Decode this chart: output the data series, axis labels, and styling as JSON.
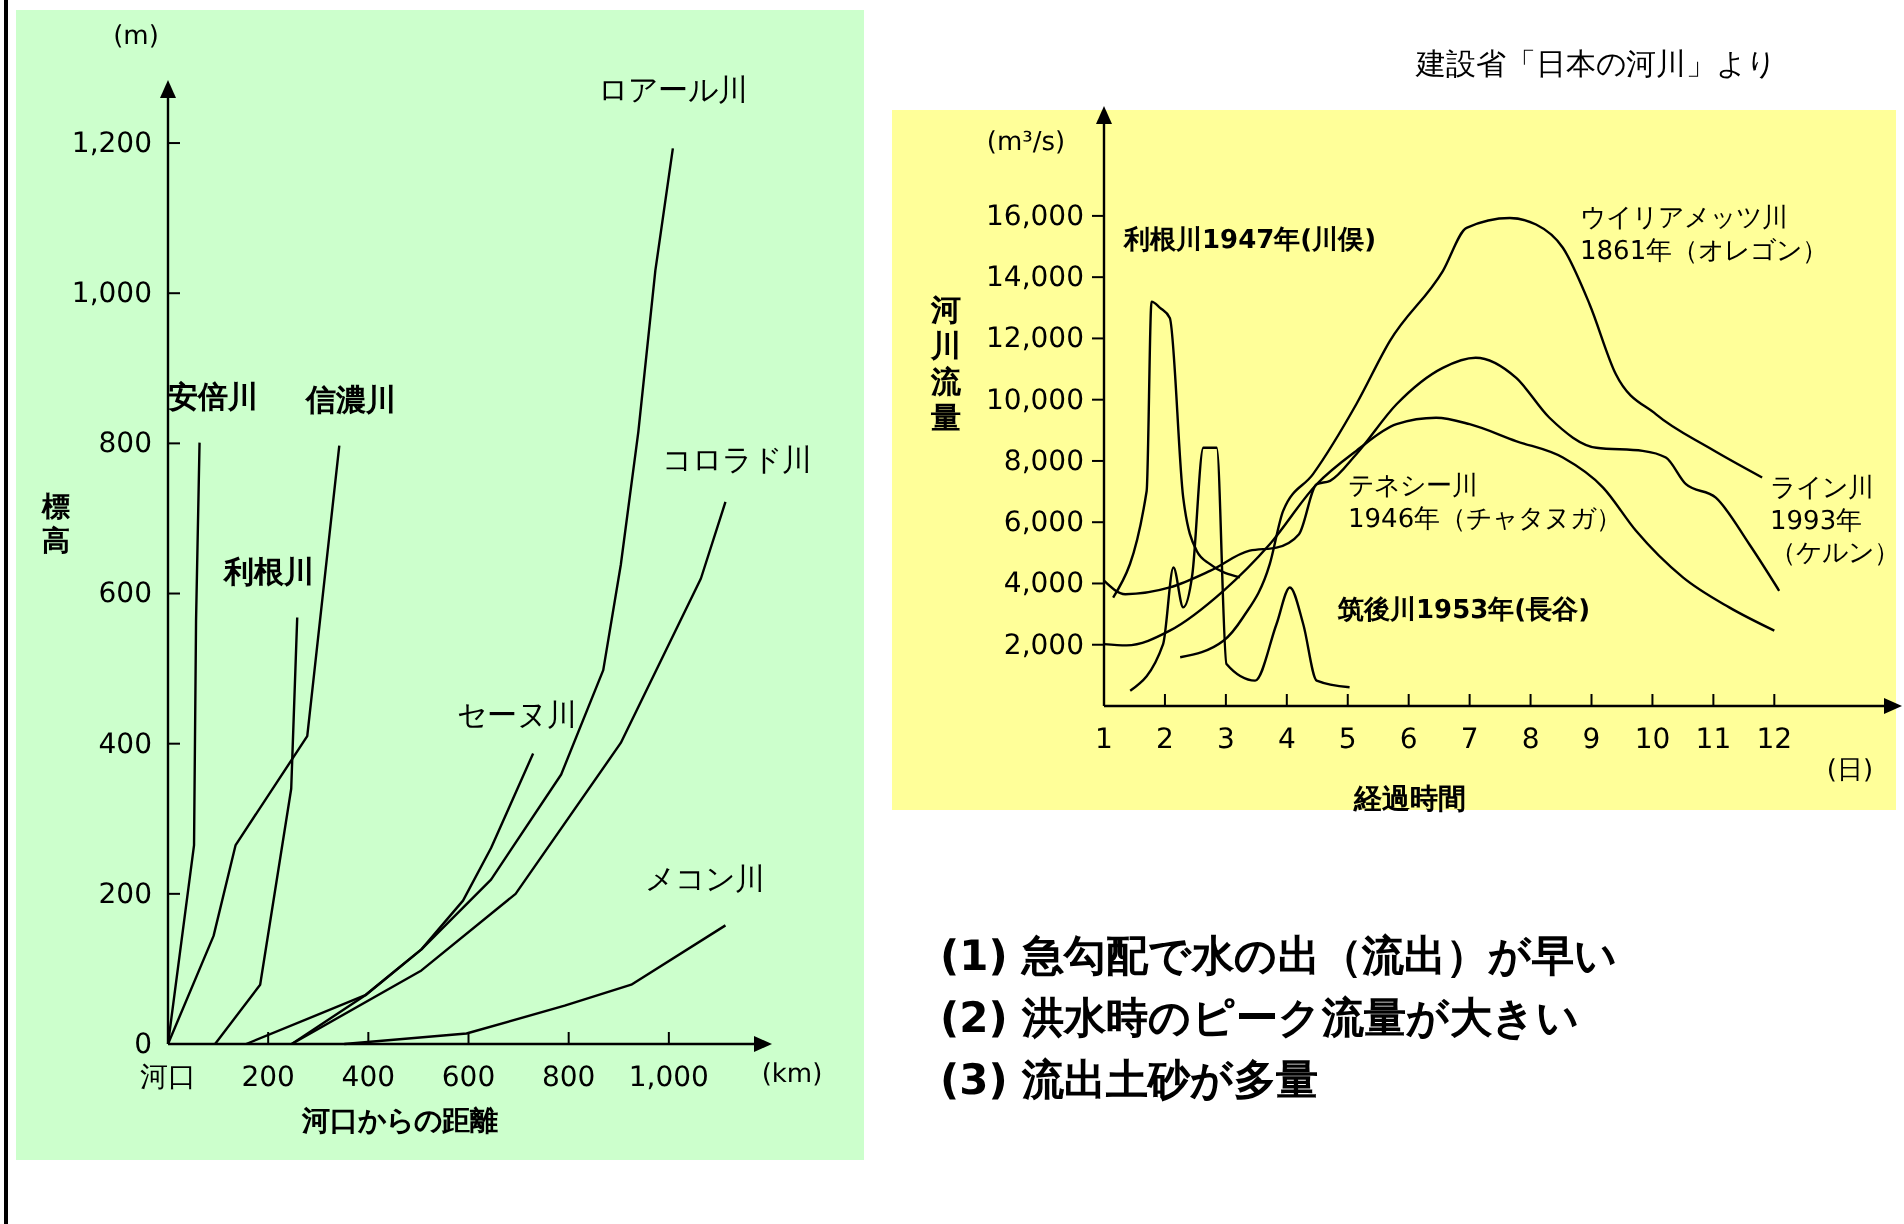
{
  "chart_data": [
    {
      "type": "line",
      "xlabel": "河口からの距離",
      "ylabel": "標高",
      "xlim": [
        0,
        1170
      ],
      "ylim": [
        0,
        1260
      ],
      "xticks": [
        {
          "value": 0,
          "label": "河口"
        },
        200,
        400,
        600,
        800,
        {
          "value": 1000,
          "label": "1,000"
        }
      ],
      "yticks": [
        0,
        200,
        400,
        600,
        800,
        {
          "value": 1000,
          "label": "1,000"
        },
        {
          "value": 1200,
          "label": "1,200"
        }
      ],
      "annotations": [
        "(m)",
        "(km)"
      ],
      "grid": false,
      "series": [
        {
          "name": "安倍川",
          "color": "#000000",
          "x": [
            0,
            52,
            56,
            63
          ],
          "values": [
            0,
            265,
            564,
            801
          ]
        },
        {
          "name": "信濃川",
          "color": "#000000",
          "x": [
            0,
            91,
            135,
            278,
            342
          ],
          "values": [
            0,
            144,
            265,
            410,
            797
          ]
        },
        {
          "name": "利根川",
          "color": "#000000",
          "x": [
            94,
            184,
            246,
            258
          ],
          "values": [
            0,
            79,
            340,
            568
          ]
        },
        {
          "name": "セーヌ川",
          "color": "#000000",
          "x": [
            156,
            394,
            506,
            589,
            645,
            729
          ],
          "values": [
            0,
            65,
            126,
            191,
            261,
            387
          ]
        },
        {
          "name": "ロアール川",
          "color": "#000000",
          "x": [
            247,
            394,
            506,
            645,
            785,
            869,
            904,
            939,
            973,
            1008
          ],
          "values": [
            0,
            65,
            126,
            219,
            359,
            498,
            638,
            815,
            1030,
            1193
          ]
        },
        {
          "name": "コロラド川",
          "color": "#000000",
          "x": [
            247,
            506,
            694,
            904,
            1064,
            1113
          ],
          "values": [
            0,
            98,
            200,
            401,
            620,
            722
          ]
        },
        {
          "name": "メコン川",
          "color": "#000000",
          "x": [
            352,
            596,
            792,
            925,
            1113
          ],
          "values": [
            0,
            14,
            51,
            79,
            158
          ]
        }
      ]
    },
    {
      "type": "line",
      "xlabel": "経過時間",
      "ylabel": "河川流量",
      "xlim": [
        1,
        13.8
      ],
      "ylim": [
        0,
        19000
      ],
      "xticks": [
        1,
        2,
        3,
        4,
        5,
        6,
        7,
        8,
        9,
        10,
        11,
        12
      ],
      "yticks": [
        {
          "value": 2000,
          "label": "2,000"
        },
        {
          "value": 4000,
          "label": "4,000"
        },
        {
          "value": 6000,
          "label": "6,000"
        },
        {
          "value": 8000,
          "label": "8,000"
        },
        {
          "value": 10000,
          "label": "10,000"
        },
        {
          "value": 12000,
          "label": "12,000"
        },
        {
          "value": 14000,
          "label": "14,000"
        },
        {
          "value": 16000,
          "label": "16,000"
        }
      ],
      "annotations": [
        "(m³/s)",
        "(日)",
        "建設省「日本の河川」より"
      ],
      "grid": false,
      "series": [
        {
          "name": "利根川1947年(川俣)",
          "color": "#000000",
          "x": [
            1.15,
            1.7,
            1.78,
            1.92,
            2.08,
            2.3,
            2.52,
            2.74,
            3.23
          ],
          "values": [
            3540,
            7020,
            13200,
            13000,
            12670,
            6800,
            5070,
            4630,
            4200
          ]
        },
        {
          "name": "筑後川1953年(長谷)",
          "color": "#000000",
          "x": [
            1.43,
            1.97,
            2.14,
            2.3,
            2.45,
            2.63,
            2.85,
            3.01,
            3.48,
            3.83,
            4.05,
            4.27,
            4.49,
            5.03
          ],
          "values": [
            500,
            2020,
            4520,
            3220,
            4300,
            8430,
            8430,
            1370,
            830,
            2670,
            3870,
            2670,
            830,
            610
          ]
        },
        {
          "name": "テネシー川1946年（チャタヌガ）",
          "color": "#000000",
          "x": [
            1,
            1.37,
            2.08,
            2.96,
            3.72,
            4.49,
            5.14,
            5.8,
            6.45,
            7.0,
            7.76,
            8.53,
            9.19,
            9.73,
            10.5,
            11.26,
            12.0
          ],
          "values": [
            2020,
            1980,
            2460,
            3760,
            5280,
            7240,
            8330,
            9200,
            9410,
            9200,
            8650,
            8110,
            7130,
            5720,
            4200,
            3220,
            2460
          ]
        },
        {
          "name": "ウイリアメッツ川1861年（オレゴン）",
          "color": "#000000",
          "x": [
            2.25,
            2.96,
            3.28,
            3.72,
            3.94,
            4.43,
            5.14,
            5.69,
            6.56,
            6.95,
            7.66,
            8.09,
            8.53,
            8.97,
            9.4,
            10.06,
            10.93,
            11.8
          ],
          "values": [
            1590,
            2130,
            2890,
            4630,
            6370,
            7570,
            9850,
            11910,
            14200,
            15610,
            15930,
            15720,
            14960,
            13110,
            10830,
            9520,
            8430,
            7460
          ]
        },
        {
          "name": "ライン川1993年（ケルン）",
          "color": "#000000",
          "x": [
            1,
            1.35,
            2.08,
            2.74,
            3.39,
            3.83,
            4.2,
            4.49,
            4.71,
            5.14,
            5.8,
            6.56,
            7.1,
            7.76,
            8.31,
            9.08,
            9.84,
            10.22,
            10.55,
            11.04,
            11.59,
            12.08
          ],
          "values": [
            4090,
            3650,
            3870,
            4410,
            5070,
            5170,
            5610,
            7240,
            7350,
            8220,
            9850,
            11040,
            11370,
            10720,
            9410,
            8430,
            8330,
            8110,
            7240,
            6800,
            5280,
            3760
          ]
        }
      ]
    },
    {
      "type": "other",
      "annotations": [
        "(1) 急勾配で水の出（流出）が早い",
        "(2) 洪水時のピーク流量が大きい",
        "(3) 流出土砂が多量"
      ]
    }
  ]
}
